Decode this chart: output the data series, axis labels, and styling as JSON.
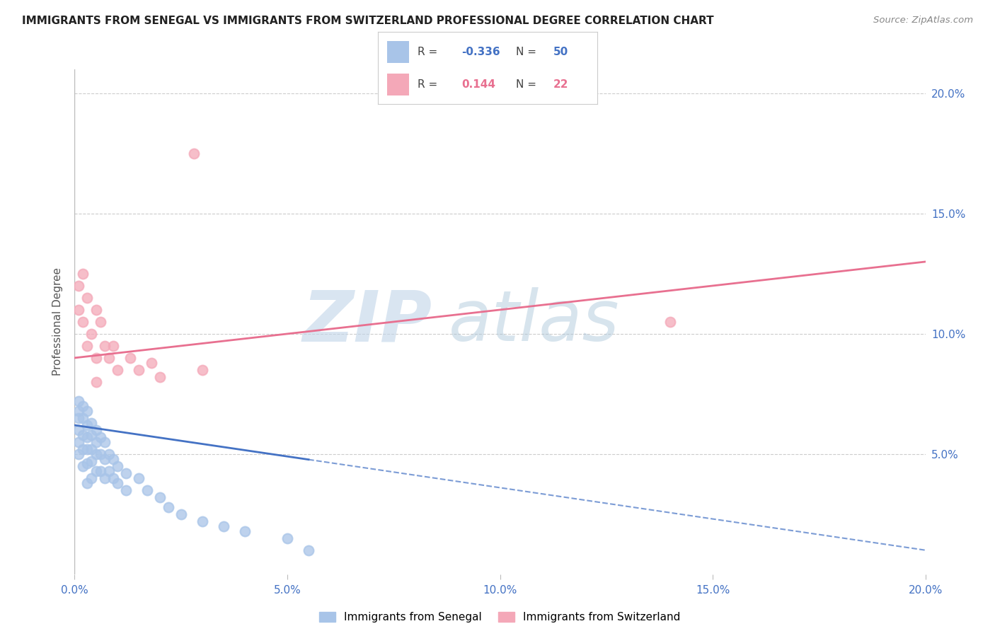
{
  "title": "IMMIGRANTS FROM SENEGAL VS IMMIGRANTS FROM SWITZERLAND PROFESSIONAL DEGREE CORRELATION CHART",
  "source": "Source: ZipAtlas.com",
  "ylabel": "Professional Degree",
  "xlim": [
    0.0,
    0.2
  ],
  "ylim": [
    0.0,
    0.21
  ],
  "senegal_color": "#a8c4e8",
  "switzerland_color": "#f4a8b8",
  "senegal_line_color": "#4472c4",
  "switzerland_line_color": "#e87090",
  "watermark_zip_color": "#c0d4e8",
  "watermark_atlas_color": "#a8c4d8",
  "background_color": "#ffffff",
  "senegal_x": [
    0.001,
    0.001,
    0.001,
    0.001,
    0.001,
    0.001,
    0.002,
    0.002,
    0.002,
    0.002,
    0.002,
    0.003,
    0.003,
    0.003,
    0.003,
    0.003,
    0.003,
    0.004,
    0.004,
    0.004,
    0.004,
    0.004,
    0.005,
    0.005,
    0.005,
    0.005,
    0.006,
    0.006,
    0.006,
    0.007,
    0.007,
    0.007,
    0.008,
    0.008,
    0.009,
    0.009,
    0.01,
    0.01,
    0.012,
    0.012,
    0.015,
    0.017,
    0.02,
    0.022,
    0.025,
    0.03,
    0.035,
    0.04,
    0.05,
    0.055
  ],
  "senegal_y": [
    0.072,
    0.068,
    0.065,
    0.06,
    0.055,
    0.05,
    0.07,
    0.065,
    0.058,
    0.052,
    0.045,
    0.068,
    0.062,
    0.057,
    0.052,
    0.046,
    0.038,
    0.063,
    0.058,
    0.052,
    0.047,
    0.04,
    0.06,
    0.055,
    0.05,
    0.043,
    0.057,
    0.05,
    0.043,
    0.055,
    0.048,
    0.04,
    0.05,
    0.043,
    0.048,
    0.04,
    0.045,
    0.038,
    0.042,
    0.035,
    0.04,
    0.035,
    0.032,
    0.028,
    0.025,
    0.022,
    0.02,
    0.018,
    0.015,
    0.01
  ],
  "switzerland_x": [
    0.001,
    0.001,
    0.002,
    0.002,
    0.003,
    0.003,
    0.004,
    0.005,
    0.005,
    0.006,
    0.007,
    0.008,
    0.009,
    0.01,
    0.013,
    0.015,
    0.018,
    0.02,
    0.028,
    0.03,
    0.14,
    0.005
  ],
  "switzerland_y": [
    0.12,
    0.11,
    0.125,
    0.105,
    0.115,
    0.095,
    0.1,
    0.11,
    0.09,
    0.105,
    0.095,
    0.09,
    0.095,
    0.085,
    0.09,
    0.085,
    0.088,
    0.082,
    0.175,
    0.085,
    0.105,
    0.08
  ],
  "sen_line_x0": 0.0,
  "sen_line_x1": 0.2,
  "sen_line_y0": 0.062,
  "sen_line_y1": 0.01,
  "sen_line_dash_x0": 0.055,
  "sen_line_dash_x1": 0.2,
  "swi_line_x0": 0.0,
  "swi_line_x1": 0.2,
  "swi_line_y0": 0.09,
  "swi_line_y1": 0.13
}
